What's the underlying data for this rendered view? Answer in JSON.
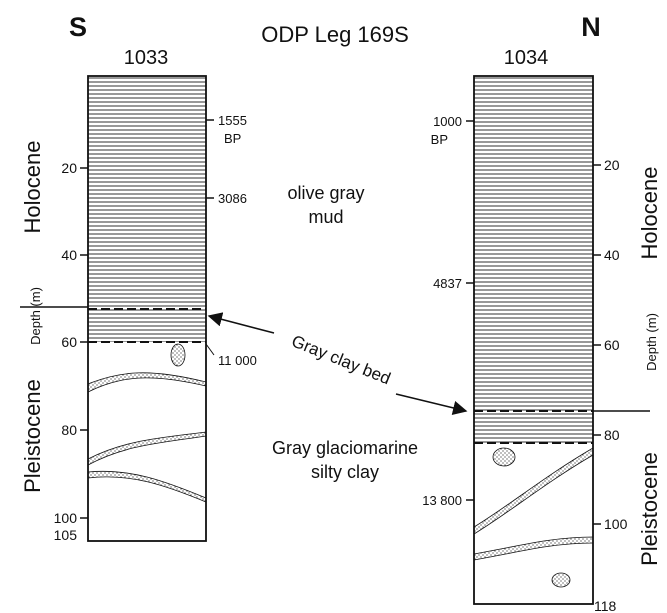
{
  "figure": {
    "title": "ODP Leg 169S",
    "direction_left": "S",
    "direction_right": "N",
    "axis_label": "Depth (m)",
    "colors": {
      "ink": "#111111",
      "hatch": "#1a1a1a",
      "background": "#ffffff"
    },
    "icons": {
      "pebble": "dotted-pebble",
      "sand_lens": "dotted-sand-lens"
    }
  },
  "cores": [
    {
      "id": "1033",
      "name": "1033",
      "depth_range_m": [
        0,
        105
      ],
      "depth_ticks": [
        20,
        40,
        60,
        80,
        100
      ],
      "bottom_label": "105",
      "units": [
        {
          "label": "Holocene",
          "from_m": 0,
          "to_m": 55
        },
        {
          "label": "Pleistocene",
          "from_m": 60,
          "to_m": 105
        }
      ],
      "age_markers": [
        {
          "label": "1555",
          "sub": "BP",
          "depth_m": 10
        },
        {
          "label": "3086",
          "depth_m": 28
        },
        {
          "label": "11 000",
          "depth_m": 62
        }
      ],
      "clay_bed_m": [
        52,
        60
      ]
    },
    {
      "id": "1034",
      "name": "1034",
      "depth_range_m": [
        0,
        118
      ],
      "depth_ticks": [
        20,
        40,
        60,
        80,
        100
      ],
      "bottom_label": "118",
      "units": [
        {
          "label": "Holocene",
          "from_m": 0,
          "to_m": 77
        },
        {
          "label": "Pleistocene",
          "from_m": 82,
          "to_m": 118
        }
      ],
      "age_markers": [
        {
          "label": "1000",
          "sub": "BP",
          "depth_m": 10
        },
        {
          "label": "4837",
          "depth_m": 50
        },
        {
          "label": "13 800",
          "depth_m": 92
        }
      ],
      "clay_bed_m": [
        76,
        82
      ]
    }
  ],
  "annotations": {
    "holocene_sediment": [
      "olive gray",
      "mud"
    ],
    "clay_bed": "Gray clay bed",
    "pleistocene_sediment": [
      "Gray glaciomarine",
      "silty clay"
    ]
  }
}
